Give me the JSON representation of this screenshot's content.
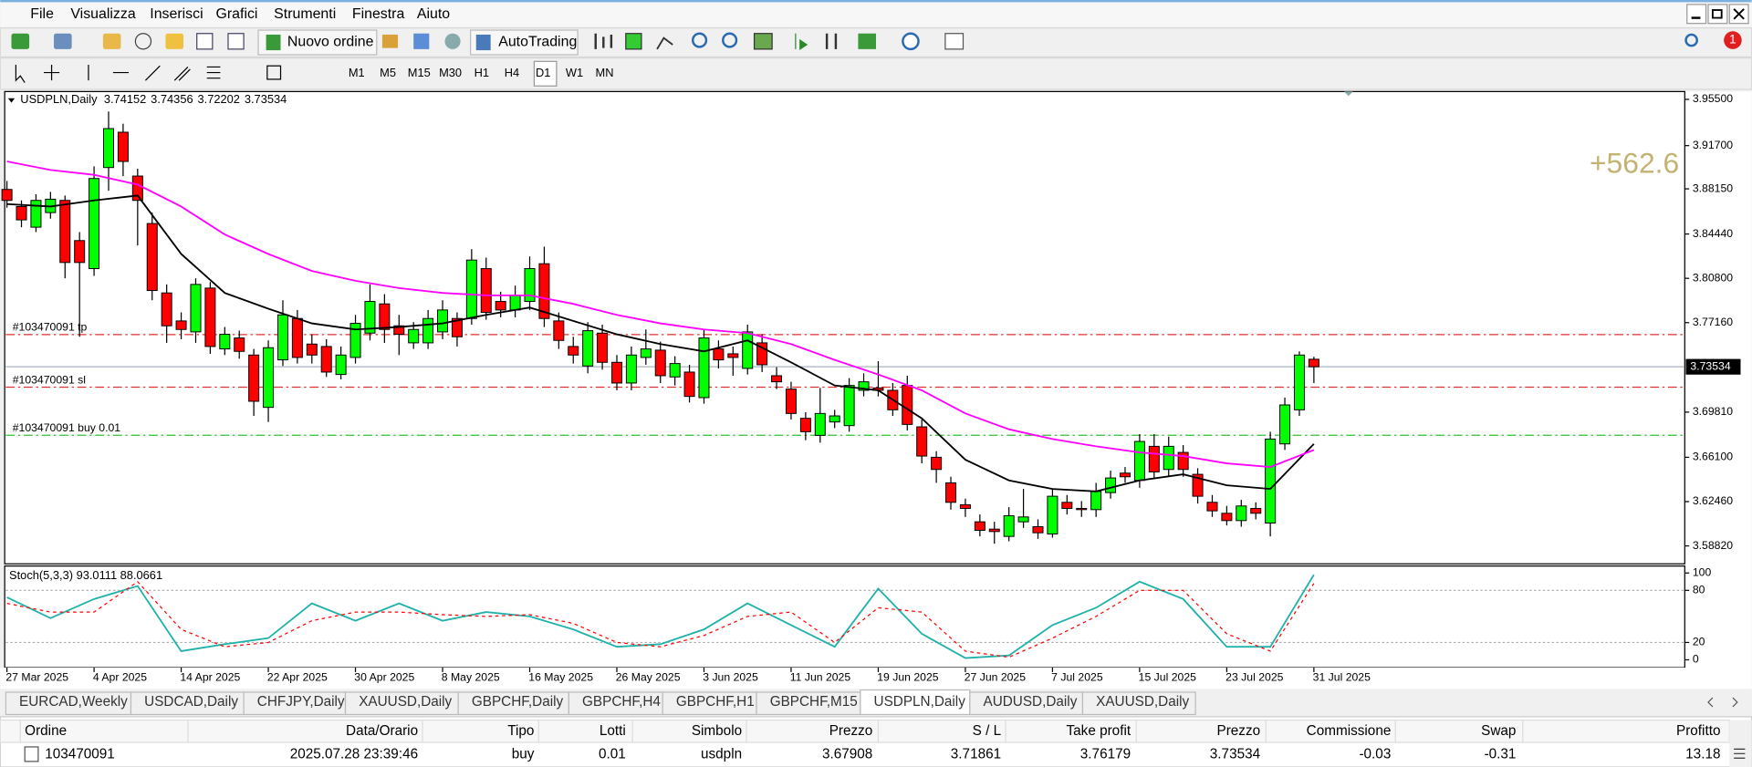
{
  "menu": [
    "File",
    "Visualizza",
    "Inserisci",
    "Grafici",
    "Strumenti",
    "Finestra",
    "Aiuto"
  ],
  "toolbar": {
    "new_order": "Nuovo ordine",
    "autotrading": "AutoTrading",
    "timeframes": [
      "M1",
      "M5",
      "M15",
      "M30",
      "H1",
      "H4",
      "D1",
      "W1",
      "MN"
    ],
    "active_timeframe": "D1",
    "notifications": "1"
  },
  "chart_data": [
    {
      "type": "candlestick",
      "symbol": "USDPLN,Daily",
      "profit_label": "+562.6",
      "categories": [
        "27 Mar 2025",
        null,
        null,
        null,
        null,
        null,
        "4 Apr 2025",
        null,
        null,
        null,
        null,
        null,
        "14 Apr 2025",
        null,
        null,
        null,
        null,
        null,
        "22 Apr 2025",
        null,
        null,
        null,
        null,
        null,
        "30 Apr 2025",
        null,
        null,
        null,
        null,
        null,
        "8 May 2025",
        null,
        null,
        null,
        null,
        null,
        "16 May 2025",
        null,
        null,
        null,
        null,
        null,
        "26 May 2025",
        null,
        null,
        null,
        null,
        null,
        "3 Jun 2025",
        null,
        null,
        null,
        null,
        null,
        "11 Jun 2025",
        null,
        null,
        null,
        null,
        null,
        "19 Jun 2025",
        null,
        null,
        null,
        null,
        null,
        "27 Jun 2025",
        null,
        null,
        null,
        null,
        null,
        "7 Jul 2025",
        null,
        null,
        null,
        null,
        null,
        "15 Jul 2025",
        null,
        null,
        null,
        null,
        null,
        "23 Jul 2025",
        null,
        null,
        null,
        null,
        null,
        "31 Jul 2025"
      ],
      "open": [
        3.881,
        3.867,
        3.85,
        3.862,
        3.872,
        3.839,
        3.816,
        3.899,
        3.928,
        3.892,
        3.853,
        3.796,
        3.773,
        3.764,
        3.8,
        3.75,
        3.759,
        3.745,
        3.702,
        3.741,
        3.775,
        3.754,
        3.752,
        3.729,
        3.743,
        3.763,
        3.787,
        3.769,
        3.755,
        3.755,
        3.764,
        3.775,
        3.775,
        3.816,
        3.789,
        3.782,
        3.789,
        3.82,
        3.773,
        3.752,
        3.736,
        3.763,
        3.739,
        3.722,
        3.743,
        3.749,
        3.727,
        3.731,
        3.71,
        3.75,
        3.746,
        3.734,
        3.755,
        3.728,
        3.717,
        3.693,
        3.679,
        3.69,
        3.687,
        3.716,
        3.718,
        3.716,
        3.72,
        3.686,
        3.661,
        3.64,
        3.622,
        3.608,
        3.602,
        3.596,
        3.608,
        3.604,
        3.598,
        3.624,
        3.619,
        3.618,
        3.632,
        3.648,
        3.642,
        3.67,
        3.651,
        3.665,
        3.647,
        3.624,
        3.615,
        3.609,
        3.619,
        3.607,
        3.672,
        3.7,
        3.74152
      ],
      "high": [
        3.888,
        3.872,
        3.877,
        3.879,
        3.876,
        3.846,
        3.9,
        3.945,
        3.935,
        3.898,
        3.862,
        3.803,
        3.78,
        3.808,
        3.805,
        3.768,
        3.765,
        3.75,
        3.757,
        3.79,
        3.782,
        3.762,
        3.758,
        3.752,
        3.778,
        3.803,
        3.795,
        3.778,
        3.772,
        3.782,
        3.79,
        3.78,
        3.832,
        3.825,
        3.797,
        3.802,
        3.826,
        3.834,
        3.78,
        3.76,
        3.772,
        3.77,
        3.745,
        3.752,
        3.766,
        3.756,
        3.744,
        3.737,
        3.766,
        3.757,
        3.752,
        3.77,
        3.762,
        3.735,
        3.723,
        3.698,
        3.718,
        3.7,
        3.726,
        3.73,
        3.74,
        3.722,
        3.728,
        3.692,
        3.666,
        3.645,
        3.627,
        3.614,
        3.608,
        3.62,
        3.635,
        3.61,
        3.635,
        3.63,
        3.625,
        3.64,
        3.65,
        3.653,
        3.68,
        3.68,
        3.678,
        3.671,
        3.652,
        3.63,
        3.621,
        3.626,
        3.624,
        3.682,
        3.71,
        3.748,
        3.74356
      ],
      "low": [
        3.866,
        3.85,
        3.846,
        3.857,
        3.808,
        3.76,
        3.81,
        3.88,
        3.892,
        3.835,
        3.79,
        3.755,
        3.758,
        3.755,
        3.746,
        3.745,
        3.742,
        3.695,
        3.69,
        3.736,
        3.738,
        3.738,
        3.727,
        3.725,
        3.738,
        3.757,
        3.755,
        3.745,
        3.75,
        3.75,
        3.758,
        3.752,
        3.77,
        3.774,
        3.776,
        3.776,
        3.782,
        3.768,
        3.75,
        3.738,
        3.73,
        3.733,
        3.716,
        3.716,
        3.737,
        3.722,
        3.72,
        3.706,
        3.705,
        3.734,
        3.728,
        3.729,
        3.731,
        3.717,
        3.692,
        3.675,
        3.673,
        3.685,
        3.682,
        3.711,
        3.711,
        3.695,
        3.683,
        3.656,
        3.64,
        3.618,
        3.612,
        3.596,
        3.59,
        3.592,
        3.603,
        3.594,
        3.595,
        3.614,
        3.612,
        3.612,
        3.627,
        3.64,
        3.636,
        3.643,
        3.645,
        3.645,
        3.623,
        3.612,
        3.605,
        3.604,
        3.61,
        3.596,
        3.667,
        3.695,
        3.72202
      ],
      "close": [
        3.872,
        3.856,
        3.872,
        3.873,
        3.821,
        3.821,
        3.89,
        3.931,
        3.904,
        3.872,
        3.798,
        3.769,
        3.766,
        3.803,
        3.752,
        3.762,
        3.748,
        3.707,
        3.751,
        3.778,
        3.743,
        3.745,
        3.731,
        3.745,
        3.771,
        3.789,
        3.766,
        3.762,
        3.766,
        3.775,
        3.782,
        3.76,
        3.823,
        3.78,
        3.782,
        3.794,
        3.816,
        3.775,
        3.757,
        3.745,
        3.765,
        3.739,
        3.722,
        3.745,
        3.75,
        3.728,
        3.738,
        3.711,
        3.759,
        3.741,
        3.743,
        3.764,
        3.737,
        3.723,
        3.697,
        3.682,
        3.697,
        3.695,
        3.72,
        3.723,
        3.716,
        3.7,
        3.688,
        3.662,
        3.651,
        3.624,
        3.619,
        3.601,
        3.6,
        3.613,
        3.612,
        3.599,
        3.629,
        3.619,
        3.618,
        3.633,
        3.644,
        3.645,
        3.674,
        3.649,
        3.67,
        3.651,
        3.629,
        3.617,
        3.609,
        3.621,
        3.615,
        3.676,
        3.704,
        3.745,
        3.73534
      ],
      "up_color": "#00ff00",
      "down_color": "#ff0000",
      "ylim": [
        3.5735,
        3.9605
      ],
      "yticks": [
        {
          "value": 3.955,
          "label": "3.95500"
        },
        {
          "value": 3.917,
          "label": "3.91700"
        },
        {
          "value": 3.8815,
          "label": "3.88150"
        },
        {
          "value": 3.8444,
          "label": "3.84440"
        },
        {
          "value": 3.808,
          "label": "3.80800"
        },
        {
          "value": 3.7716,
          "label": "3.77160"
        },
        {
          "value": 3.6981,
          "label": "3.69810"
        },
        {
          "value": 3.661,
          "label": "3.66100"
        },
        {
          "value": 3.6246,
          "label": "3.62460"
        },
        {
          "value": 3.5882,
          "label": "3.58820"
        }
      ],
      "grid": false,
      "order_labels": [
        "#103470091 tp",
        "#103470091 sl",
        "#103470091 buy 0.01"
      ],
      "overlays": {
        "x": [
          0,
          3,
          6,
          9,
          12,
          15,
          18,
          21,
          24,
          27,
          30,
          33,
          36,
          39,
          42,
          45,
          48,
          51,
          54,
          57,
          60,
          63,
          66,
          69,
          72,
          75,
          78,
          81,
          84,
          87,
          90
        ],
        "series": [
          {
            "color": "#000000",
            "values": [
              3.869,
              3.867,
              3.872,
              3.876,
              3.828,
              3.796,
              3.783,
              3.771,
              3.766,
              3.768,
              3.771,
              3.778,
              3.784,
              3.773,
              3.762,
              3.754,
              3.748,
              3.757,
              3.739,
              3.72,
              3.716,
              3.693,
              3.659,
              3.642,
              3.635,
              3.633,
              3.642,
              3.647,
              3.638,
              3.635,
              3.672
            ]
          },
          {
            "color": "#ff00ff",
            "values": [
              3.904,
              3.897,
              3.893,
              3.885,
              3.867,
              3.844,
              3.828,
              3.814,
              3.806,
              3.8,
              3.796,
              3.794,
              3.794,
              3.787,
              3.778,
              3.771,
              3.766,
              3.763,
              3.754,
              3.741,
              3.729,
              3.716,
              3.697,
              3.684,
              3.676,
              3.67,
              3.665,
              3.662,
              3.656,
              3.653,
              3.667
            ]
          }
        ]
      }
    },
    {
      "type": "line",
      "title": "Stoch(5,3,3) 93.0111 88.0661",
      "x": [
        0,
        3,
        6,
        9,
        12,
        15,
        18,
        21,
        24,
        27,
        30,
        33,
        36,
        39,
        42,
        45,
        48,
        51,
        54,
        57,
        60,
        63,
        66,
        69,
        72,
        75,
        78,
        81,
        84,
        87,
        90
      ],
      "series": [
        {
          "color": "#20b2aa",
          "values": [
            72,
            48,
            70,
            85,
            10,
            18,
            25,
            65,
            45,
            65,
            45,
            55,
            50,
            35,
            15,
            18,
            35,
            65,
            40,
            15,
            82,
            30,
            2,
            5,
            40,
            60,
            90,
            70,
            15,
            15,
            98
          ]
        },
        {
          "color": "#ff0000",
          "dashed": true,
          "values": [
            65,
            55,
            55,
            90,
            35,
            15,
            20,
            45,
            55,
            55,
            52,
            50,
            52,
            42,
            20,
            15,
            28,
            50,
            55,
            20,
            60,
            55,
            10,
            3,
            25,
            50,
            80,
            80,
            30,
            10,
            88
          ]
        }
      ],
      "ylim": [
        -9,
        108
      ],
      "yticks": [
        100,
        80,
        20,
        0
      ],
      "levels": [
        80,
        20
      ]
    }
  ],
  "tabs": [
    "EURCAD,Weekly",
    "USDCAD,Daily",
    "CHFJPY,Daily",
    "XAUUSD,Daily",
    "GBPCHF,Daily",
    "GBPCHF,H4",
    "GBPCHF,H1",
    "GBPCHF,M15",
    "USDPLN,Daily",
    "AUDUSD,Daily",
    "XAUUSD,Daily"
  ],
  "active_tab": "USDPLN,Daily",
  "table": {
    "columns": [
      "Ordine",
      "Data/Orario",
      "Tipo",
      "Lotti",
      "Simbolo",
      "Prezzo",
      "S / L",
      "Take profit",
      "Prezzo",
      "Commissione",
      "Swap",
      "Profitto"
    ],
    "rows": [
      [
        "103470091",
        "2025.07.28 23:39:46",
        "buy",
        0.01,
        "usdpln",
        3.67908,
        3.71861,
        3.76179,
        3.73534,
        -0.03,
        -0.31,
        13.18
      ]
    ]
  }
}
